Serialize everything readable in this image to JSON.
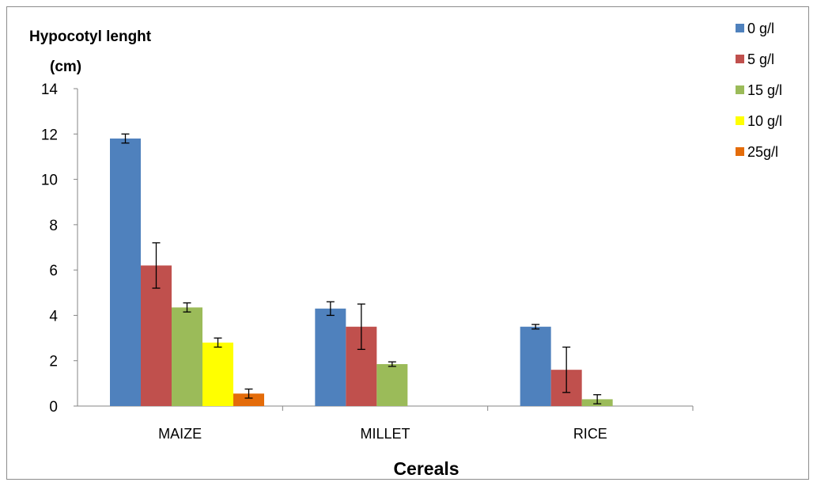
{
  "chart_data": {
    "type": "bar",
    "title": "",
    "ylabel_line1": "Hypocotyl lenght",
    "ylabel_line2": "(cm)",
    "xlabel": "Cereals",
    "ylim": [
      0,
      14
    ],
    "yticks": [
      0,
      2,
      4,
      6,
      8,
      10,
      12,
      14
    ],
    "categories": [
      "MAIZE",
      "MILLET",
      "RICE"
    ],
    "legend_position": "top-right",
    "series": [
      {
        "name": "0 g/l",
        "color": "#4f81bd",
        "values": [
          11.8,
          4.3,
          3.5
        ],
        "errors": [
          0.2,
          0.3,
          0.1
        ]
      },
      {
        "name": "5 g/l",
        "color": "#c0504d",
        "values": [
          6.2,
          3.5,
          1.6
        ],
        "errors": [
          1.0,
          1.0,
          1.0
        ]
      },
      {
        "name": "15 g/l",
        "color": "#9bbb59",
        "values": [
          4.35,
          1.85,
          0.3
        ],
        "errors": [
          0.2,
          0.1,
          0.2
        ]
      },
      {
        "name": "10 g/l",
        "color": "#ffff00",
        "values": [
          2.8,
          0,
          0
        ],
        "errors": [
          0.2,
          0,
          0
        ]
      },
      {
        "name": "25g/l",
        "color": "#e46c0a",
        "values": [
          0.55,
          0,
          0
        ],
        "errors": [
          0.2,
          0,
          0
        ]
      }
    ]
  }
}
